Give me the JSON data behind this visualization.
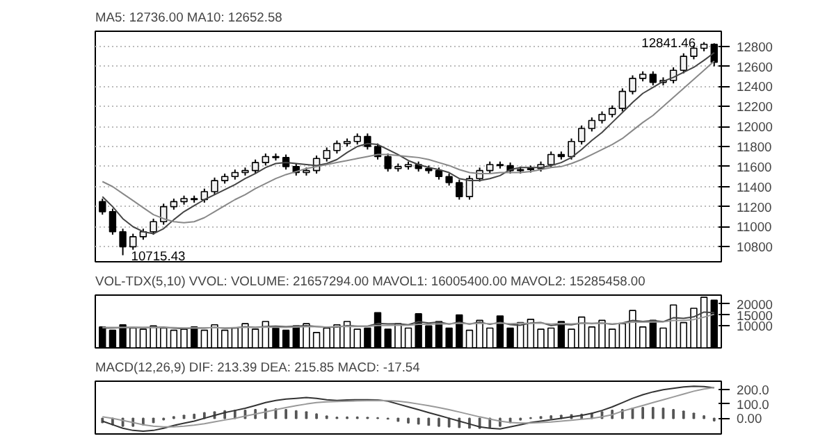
{
  "chart_data": [
    {
      "type": "candlestick",
      "title": "MA5: 12736.00  MA10: 12652.58",
      "color": "#000000",
      "categories": [
        null,
        null,
        null,
        null,
        null,
        null,
        null,
        null,
        null,
        null,
        null,
        null,
        null,
        null,
        null,
        null,
        null,
        null,
        null,
        null,
        null,
        null,
        null,
        null,
        null,
        null,
        null,
        null,
        null,
        null,
        null,
        null,
        null,
        null,
        null,
        null,
        null,
        null,
        null,
        null,
        null,
        null,
        null,
        null,
        null,
        null,
        null,
        null,
        null,
        null,
        null,
        null,
        null,
        null,
        null,
        null,
        null,
        null,
        null,
        null,
        null
      ],
      "ylim": [
        10650,
        12950
      ],
      "yticks": [
        10800,
        11000,
        11200,
        11400,
        11600,
        11800,
        12000,
        12200,
        12400,
        12600,
        12800
      ],
      "grid": "y",
      "tick_labels": "y",
      "ohlc": [
        [
          11250,
          11280,
          11120,
          11150
        ],
        [
          11150,
          11180,
          10920,
          10950
        ],
        [
          10950,
          10980,
          10715.43,
          10800
        ],
        [
          10800,
          10930,
          10770,
          10900
        ],
        [
          10900,
          10980,
          10870,
          10950
        ],
        [
          10950,
          11080,
          10920,
          11050
        ],
        [
          11050,
          11230,
          11020,
          11200
        ],
        [
          11200,
          11280,
          11170,
          11250
        ],
        [
          11250,
          11310,
          11220,
          11280
        ],
        [
          11280,
          11310,
          11240,
          11270
        ],
        [
          11270,
          11380,
          11240,
          11350
        ],
        [
          11350,
          11490,
          11320,
          11460
        ],
        [
          11460,
          11530,
          11430,
          11500
        ],
        [
          11500,
          11570,
          11470,
          11540
        ],
        [
          11540,
          11590,
          11510,
          11560
        ],
        [
          11560,
          11670,
          11530,
          11640
        ],
        [
          11640,
          11730,
          11610,
          11700
        ],
        [
          11700,
          11730,
          11660,
          11690
        ],
        [
          11690,
          11720,
          11570,
          11600
        ],
        [
          11600,
          11630,
          11510,
          11540
        ],
        [
          11540,
          11590,
          11510,
          11560
        ],
        [
          11560,
          11710,
          11530,
          11680
        ],
        [
          11680,
          11790,
          11650,
          11760
        ],
        [
          11760,
          11860,
          11730,
          11830
        ],
        [
          11830,
          11880,
          11800,
          11850
        ],
        [
          11850,
          11930,
          11820,
          11900
        ],
        [
          11900,
          11930,
          11770,
          11800
        ],
        [
          11800,
          11830,
          11670,
          11700
        ],
        [
          11700,
          11730,
          11550,
          11580
        ],
        [
          11580,
          11630,
          11550,
          11600
        ],
        [
          11600,
          11650,
          11570,
          11620
        ],
        [
          11620,
          11650,
          11550,
          11580
        ],
        [
          11580,
          11610,
          11530,
          11560
        ],
        [
          11560,
          11590,
          11470,
          11500
        ],
        [
          11500,
          11530,
          11410,
          11440
        ],
        [
          11440,
          11470,
          11270,
          11300
        ],
        [
          11300,
          11510,
          11270,
          11480
        ],
        [
          11480,
          11590,
          11450,
          11560
        ],
        [
          11560,
          11650,
          11530,
          11620
        ],
        [
          11620,
          11650,
          11580,
          11610
        ],
        [
          11610,
          11640,
          11530,
          11560
        ],
        [
          11560,
          11600,
          11530,
          11570
        ],
        [
          11570,
          11610,
          11540,
          11580
        ],
        [
          11580,
          11650,
          11550,
          11620
        ],
        [
          11620,
          11750,
          11590,
          11720
        ],
        [
          11720,
          11750,
          11670,
          11700
        ],
        [
          11700,
          11880,
          11670,
          11850
        ],
        [
          11850,
          12010,
          11820,
          11980
        ],
        [
          11980,
          12090,
          11950,
          12060
        ],
        [
          12060,
          12150,
          12030,
          12120
        ],
        [
          12120,
          12210,
          12090,
          12180
        ],
        [
          12180,
          12380,
          12150,
          12350
        ],
        [
          12350,
          12510,
          12320,
          12480
        ],
        [
          12480,
          12550,
          12450,
          12520
        ],
        [
          12520,
          12550,
          12410,
          12440
        ],
        [
          12440,
          12490,
          12410,
          12460
        ],
        [
          12460,
          12590,
          12430,
          12560
        ],
        [
          12560,
          12730,
          12530,
          12700
        ],
        [
          12700,
          12810,
          12670,
          12780
        ],
        [
          12780,
          12841.46,
          12750,
          12820
        ],
        [
          12820,
          12830,
          12600,
          12640
        ]
      ],
      "series": [
        {
          "type": "line",
          "color": "#444444",
          "values": [
            11300,
            11200,
            11080,
            11000,
            10950,
            10930,
            10980,
            11070,
            11150,
            11210,
            11270,
            11320,
            11370,
            11420,
            11480,
            11530,
            11590,
            11630,
            11640,
            11630,
            11620,
            11610,
            11630,
            11670,
            11740,
            11800,
            11830,
            11820,
            11770,
            11720,
            11660,
            11620,
            11590,
            11570,
            11540,
            11480,
            11460,
            11460,
            11480,
            11510,
            11570,
            11590,
            11590,
            11590,
            11610,
            11640,
            11690,
            11770,
            11860,
            11940,
            12040,
            12140,
            12240,
            12330,
            12390,
            12450,
            12490,
            12540,
            12590,
            12660,
            12736
          ]
        },
        {
          "type": "line",
          "color": "#888888",
          "values": [
            11450,
            11400,
            11330,
            11260,
            11190,
            11120,
            11080,
            11050,
            11040,
            11050,
            11090,
            11150,
            11210,
            11270,
            11320,
            11380,
            11430,
            11480,
            11520,
            11550,
            11580,
            11600,
            11620,
            11640,
            11660,
            11680,
            11700,
            11720,
            11720,
            11710,
            11700,
            11690,
            11670,
            11640,
            11610,
            11570,
            11540,
            11530,
            11530,
            11540,
            11540,
            11540,
            11550,
            11570,
            11590,
            11600,
            11630,
            11670,
            11720,
            11770,
            11820,
            11880,
            11960,
            12040,
            12110,
            12200,
            12290,
            12380,
            12470,
            12560,
            12652.58
          ]
        }
      ],
      "annotations": [
        "12841.46",
        "10715.43"
      ]
    },
    {
      "type": "bar",
      "title": "VOL-TDX(5,10)  VVOL:  VOLUME: 21657294.00  MAVOL1: 16005400.00  MAVOL2: 15285458.00",
      "categories": [
        null,
        null,
        null,
        null,
        null,
        null,
        null,
        null,
        null,
        null,
        null,
        null,
        null,
        null,
        null,
        null,
        null,
        null,
        null,
        null,
        null,
        null,
        null,
        null,
        null,
        null,
        null,
        null,
        null,
        null,
        null,
        null,
        null,
        null,
        null,
        null,
        null,
        null,
        null,
        null,
        null,
        null,
        null,
        null,
        null,
        null,
        null,
        null,
        null,
        null,
        null,
        null,
        null,
        null,
        null,
        null,
        null,
        null,
        null,
        null,
        null
      ],
      "ylim": [
        0,
        24000
      ],
      "yticks": [
        10000,
        15000,
        20000
      ],
      "tick_labels": "y",
      "series": [
        {
          "type": "bar",
          "values": [
            9500,
            8000,
            10500,
            9000,
            8500,
            10000,
            9000,
            8000,
            8500,
            9500,
            8000,
            10500,
            8000,
            9000,
            11000,
            8500,
            12000,
            9000,
            8000,
            10000,
            11000,
            7000,
            9000,
            10500,
            12000,
            8500,
            9000,
            16000,
            8500,
            11000,
            9000,
            15500,
            10000,
            12000,
            9000,
            15000,
            8000,
            12500,
            9000,
            14500,
            9000,
            11500,
            13000,
            8500,
            9000,
            12000,
            8500,
            14000,
            9500,
            12500,
            8500,
            11000,
            17000,
            9500,
            12500,
            9000,
            19500,
            11500,
            18000,
            23000,
            21657
          ],
          "colors": [
            "#000000",
            "#000000",
            "#000000",
            "#ffffff",
            "#ffffff",
            "#ffffff",
            "#ffffff",
            "#ffffff",
            "#ffffff",
            "#000000",
            "#ffffff",
            "#ffffff",
            "#ffffff",
            "#ffffff",
            "#ffffff",
            "#ffffff",
            "#ffffff",
            "#000000",
            "#000000",
            "#000000",
            "#ffffff",
            "#ffffff",
            "#ffffff",
            "#ffffff",
            "#ffffff",
            "#ffffff",
            "#000000",
            "#000000",
            "#000000",
            "#ffffff",
            "#ffffff",
            "#000000",
            "#000000",
            "#000000",
            "#000000",
            "#000000",
            "#ffffff",
            "#ffffff",
            "#ffffff",
            "#000000",
            "#000000",
            "#ffffff",
            "#ffffff",
            "#ffffff",
            "#ffffff",
            "#000000",
            "#ffffff",
            "#ffffff",
            "#ffffff",
            "#ffffff",
            "#ffffff",
            "#ffffff",
            "#ffffff",
            "#ffffff",
            "#000000",
            "#ffffff",
            "#ffffff",
            "#ffffff",
            "#ffffff",
            "#ffffff",
            "#000000"
          ]
        },
        {
          "type": "line",
          "color": "#444444",
          "values": [
            9000,
            9100,
            9200,
            9300,
            9200,
            9300,
            9400,
            9000,
            8800,
            9100,
            9000,
            9300,
            8900,
            9100,
            9600,
            9300,
            9700,
            9900,
            9600,
            9900,
            10100,
            9700,
            9400,
            9500,
            10100,
            9900,
            9900,
            11100,
            10900,
            11000,
            10500,
            11900,
            11300,
            11800,
            10800,
            11700,
            10800,
            11700,
            10700,
            11600,
            10600,
            10300,
            11300,
            11500,
            10200,
            10700,
            10500,
            11300,
            11100,
            11300,
            10700,
            11300,
            12500,
            12000,
            12400,
            11900,
            13700,
            13400,
            14100,
            16300,
            16005
          ]
        },
        {
          "type": "line",
          "color": "#999999",
          "values": [
            9300,
            9300,
            9300,
            9300,
            9300,
            9300,
            9300,
            9200,
            9100,
            9100,
            9100,
            9200,
            9100,
            9200,
            9400,
            9300,
            9500,
            9400,
            9300,
            9500,
            9600,
            9600,
            9500,
            9700,
            9800,
            9700,
            9800,
            10200,
            10200,
            10300,
            10300,
            10700,
            10700,
            11000,
            10900,
            11200,
            10900,
            11200,
            11000,
            11300,
            11000,
            11200,
            11100,
            11300,
            10800,
            11100,
            10900,
            11300,
            11000,
            11300,
            10900,
            11200,
            11700,
            11700,
            11800,
            11800,
            12500,
            12500,
            12900,
            14000,
            15285
          ]
        }
      ]
    },
    {
      "type": "line",
      "title": "MACD(12,26,9)  DIF: 213.39  DEA: 215.85  MACD: -17.54",
      "categories": [
        null,
        null,
        null,
        null,
        null,
        null,
        null,
        null,
        null,
        null,
        null,
        null,
        null,
        null,
        null,
        null,
        null,
        null,
        null,
        null,
        null,
        null,
        null,
        null,
        null,
        null,
        null,
        null,
        null,
        null,
        null,
        null,
        null,
        null,
        null,
        null,
        null,
        null,
        null,
        null,
        null,
        null,
        null,
        null,
        null,
        null,
        null,
        null,
        null,
        null,
        null,
        null,
        null,
        null,
        null,
        null,
        null,
        null,
        null,
        null,
        null
      ],
      "ylim": [
        -110,
        260
      ],
      "yticks": [
        {
          "value": 0,
          "label": "0.00"
        },
        {
          "value": 100,
          "label": "100.0"
        },
        {
          "value": 200,
          "label": "200.0"
        }
      ],
      "tick_labels": "y",
      "series": [
        {
          "type": "bar",
          "color": "#555555",
          "values": [
            -30,
            -45,
            -55,
            -55,
            -45,
            -30,
            -10,
            10,
            20,
            28,
            38,
            45,
            52,
            55,
            55,
            60,
            65,
            65,
            60,
            52,
            45,
            30,
            15,
            7,
            8,
            8,
            6,
            3,
            -4,
            -20,
            -32,
            -40,
            -48,
            -55,
            -60,
            -64,
            -67,
            -70,
            -65,
            -55,
            -30,
            -12,
            3,
            10,
            16,
            20,
            24,
            27,
            35,
            45,
            55,
            60,
            70,
            75,
            75,
            70,
            60,
            50,
            35,
            17,
            -17.54
          ]
        },
        {
          "type": "line",
          "color": "#333333",
          "values": [
            -20,
            -45,
            -70,
            -85,
            -90,
            -85,
            -70,
            -50,
            -35,
            -20,
            0,
            20,
            40,
            55,
            70,
            90,
            110,
            125,
            135,
            140,
            145,
            140,
            130,
            125,
            128,
            130,
            130,
            128,
            120,
            100,
            80,
            60,
            40,
            20,
            0,
            -20,
            -40,
            -60,
            -70,
            -75,
            -60,
            -45,
            -30,
            -20,
            -10,
            0,
            10,
            20,
            35,
            55,
            80,
            110,
            140,
            165,
            185,
            200,
            210,
            220,
            225,
            222,
            213.39
          ]
        },
        {
          "type": "line",
          "color": "#999999",
          "values": [
            10,
            0,
            -15,
            -30,
            -45,
            -55,
            -60,
            -60,
            -55,
            -48,
            -38,
            -25,
            -12,
            0,
            15,
            30,
            45,
            60,
            75,
            88,
            100,
            110,
            115,
            118,
            120,
            122,
            124,
            125,
            124,
            120,
            112,
            100,
            88,
            75,
            60,
            44,
            27,
            10,
            -5,
            -20,
            -30,
            -33,
            -33,
            -30,
            -26,
            -20,
            -14,
            -7,
            0,
            10,
            25,
            50,
            70,
            90,
            110,
            130,
            150,
            170,
            190,
            205,
            215.85
          ]
        }
      ]
    }
  ]
}
